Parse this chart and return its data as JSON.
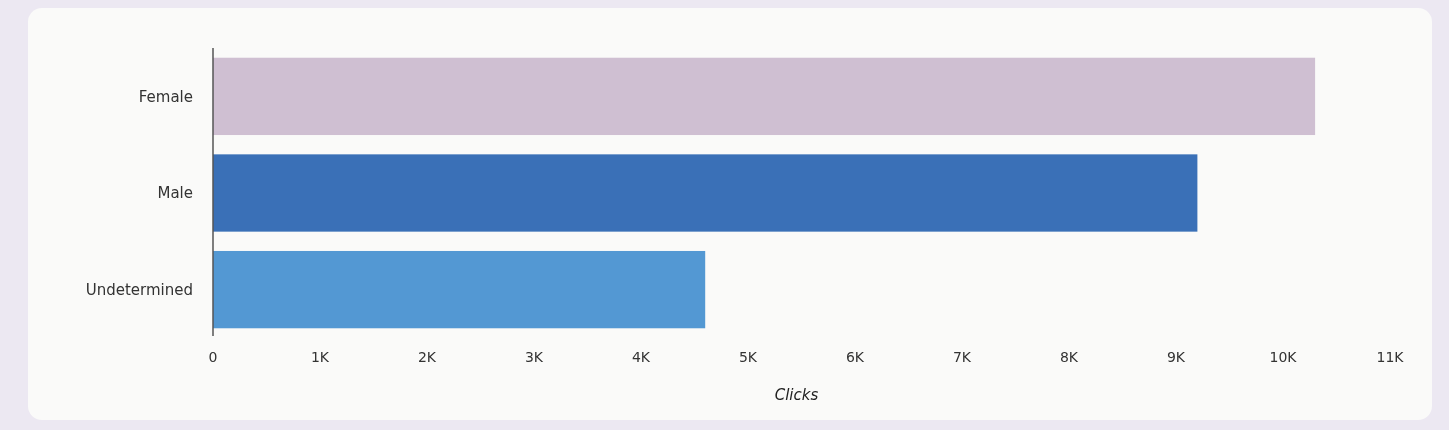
{
  "chart_data": {
    "type": "bar",
    "orientation": "horizontal",
    "categories": [
      "Female",
      "Male",
      "Undetermined"
    ],
    "values": [
      10300,
      9200,
      4600
    ],
    "colors": [
      "#cfbfd2",
      "#3a70b7",
      "#5398d3"
    ],
    "xlabel": "Clicks",
    "xlim": [
      0,
      11000
    ],
    "xticks": [
      0,
      {
        "value": 1000,
        "label": "1K"
      },
      {
        "value": 2000,
        "label": "2K"
      },
      {
        "value": 3000,
        "label": "3K"
      },
      {
        "value": 4000,
        "label": "4K"
      },
      {
        "value": 5000,
        "label": "5K"
      },
      {
        "value": 6000,
        "label": "6K"
      },
      {
        "value": 7000,
        "label": "7K"
      },
      {
        "value": 8000,
        "label": "8K"
      },
      {
        "value": 9000,
        "label": "9K"
      },
      {
        "value": 10000,
        "label": "10K"
      },
      {
        "value": 11000,
        "label": "11K"
      }
    ],
    "grid": false
  }
}
